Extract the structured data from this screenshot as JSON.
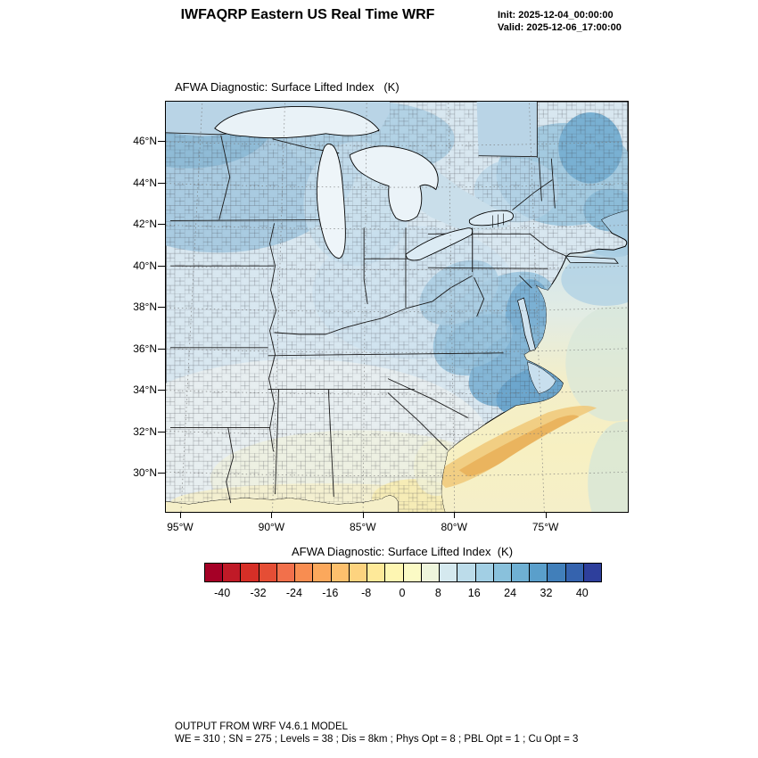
{
  "header": {
    "title": "IWFAQRP Eastern US Real Time WRF",
    "init_label": "Init: 2025-12-04_00:00:00",
    "valid_label": "Valid: 2025-12-06_17:00:00"
  },
  "map": {
    "title": "AFWA Diagnostic: Surface Lifted Index   (K)",
    "lat_labels": [
      "46°N",
      "44°N",
      "42°N",
      "40°N",
      "38°N",
      "36°N",
      "34°N",
      "32°N",
      "30°N"
    ],
    "lon_labels": [
      "95°W",
      "90°W",
      "85°W",
      "80°W",
      "75°W"
    ]
  },
  "colorbar": {
    "title": "AFWA Diagnostic: Surface Lifted Index  (K)",
    "tick_labels": [
      "-40",
      "-32",
      "-24",
      "-16",
      "-8",
      "0",
      "8",
      "16",
      "24",
      "32",
      "40"
    ],
    "colors": [
      "#a50026",
      "#c01a27",
      "#d62f27",
      "#e54e35",
      "#f2704b",
      "#f88d51",
      "#fba85c",
      "#fdc06d",
      "#fdd37f",
      "#fee999",
      "#fef6b2",
      "#fbfac5",
      "#eef5dc",
      "#d5e9ef",
      "#bcdcea",
      "#a2cfe4",
      "#89c1dc",
      "#6fb0d3",
      "#5a9fcb",
      "#417fba",
      "#3563ae",
      "#2e3f9c"
    ]
  },
  "footer": {
    "line1": "OUTPUT FROM WRF V4.6.1 MODEL",
    "line2": "WE = 310 ; SN = 275 ; Levels = 38 ; Dis = 8km ; Phys Opt = 8 ; PBL Opt = 1 ; Cu Opt = 3"
  },
  "chart_data": {
    "type": "heatmap",
    "title": "AFWA Diagnostic: Surface Lifted Index (K)",
    "variable": "Surface Lifted Index",
    "units": "K",
    "model": "IWFAQRP Eastern US Real Time WRF, WRF V4.6.1",
    "init_time": "2025-12-04_00:00:00",
    "valid_time": "2025-12-06_17:00:00",
    "x_ticks": [
      "95°W",
      "90°W",
      "85°W",
      "80°W",
      "75°W"
    ],
    "y_ticks": [
      "46°N",
      "44°N",
      "42°N",
      "40°N",
      "38°N",
      "36°N",
      "34°N",
      "32°N",
      "30°N"
    ],
    "colorbar_tick_values": [
      -40,
      -32,
      -24,
      -16,
      -8,
      0,
      8,
      16,
      24,
      32,
      40
    ],
    "colorbar_range": [
      -44,
      44
    ],
    "contour_interval": 4,
    "legend_position": "bottom",
    "grid": "dashed lat-lon graticule every 2 deg lat / 5 deg lon",
    "field_summary": [
      {
        "region": "Upper Midwest / western Great Lakes",
        "approx_LI_K": "16 to 28"
      },
      {
        "region": "Northern New England / Maine",
        "approx_LI_K": "20 to 32"
      },
      {
        "region": "Ohio Valley and Mid-South",
        "approx_LI_K": "8 to 16"
      },
      {
        "region": "Appalachians / Mid-Atlantic (Chesapeake) region",
        "approx_LI_K": "16 to 28"
      },
      {
        "region": "Carolinas coastal plain",
        "approx_LI_K": "16 to 28"
      },
      {
        "region": "Gulf Coast states and Florida panhandle",
        "approx_LI_K": "0 to 8"
      },
      {
        "region": "Offshore southwest Atlantic (Gulf Stream)",
        "approx_LI_K": "-8 to 4"
      },
      {
        "region": "Open Atlantic far offshore",
        "approx_LI_K": "4 to 12"
      }
    ]
  }
}
